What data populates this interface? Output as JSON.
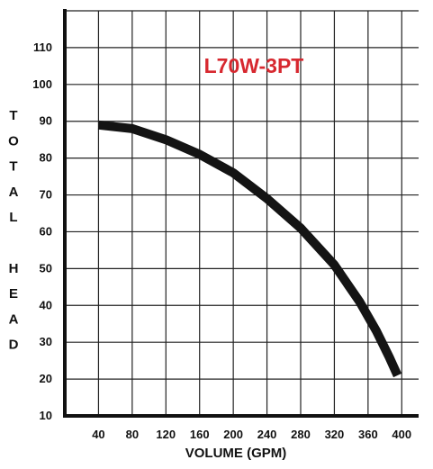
{
  "chart_data": {
    "type": "line",
    "title": "L70W-3PT",
    "xlabel": "VOLUME (GPM)",
    "ylabel": "TOTAL HEAD",
    "ylabel_letters": [
      "T",
      "O",
      "T",
      "A",
      "L",
      "",
      "H",
      "E",
      "A",
      "D"
    ],
    "x_ticks": [
      40,
      80,
      120,
      160,
      200,
      240,
      280,
      320,
      360,
      400
    ],
    "y_ticks": [
      10,
      20,
      30,
      40,
      50,
      60,
      70,
      80,
      90,
      100,
      110
    ],
    "xlim": [
      0,
      420
    ],
    "ylim": [
      10,
      120
    ],
    "grid": true,
    "series": [
      {
        "x": [
          40,
          80,
          120,
          160,
          200,
          240,
          280,
          320,
          350,
          370,
          385,
          395
        ],
        "y": [
          89,
          88,
          85,
          81,
          76,
          69,
          61,
          51,
          41,
          33,
          26,
          21
        ]
      }
    ]
  },
  "colors": {
    "title": "#d7282f",
    "curve": "#141414",
    "grid": "#222222",
    "axis": "#111111"
  }
}
